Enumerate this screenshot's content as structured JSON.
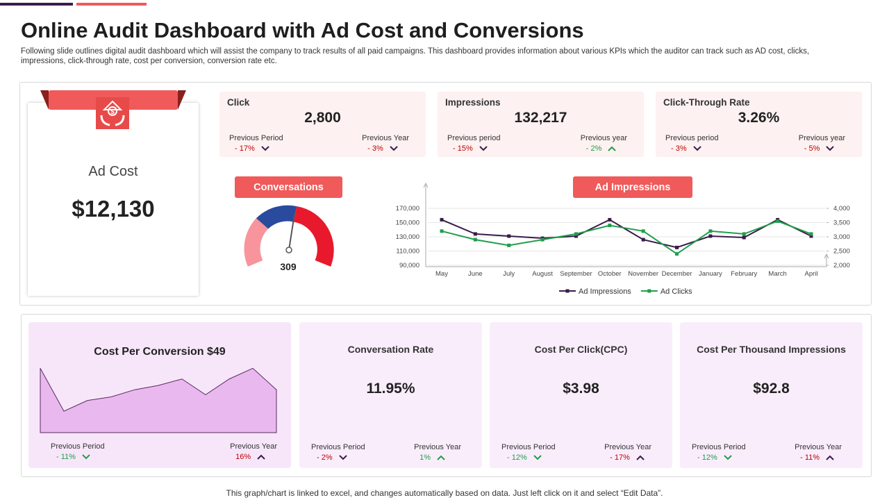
{
  "header": {
    "title": "Online Audit Dashboard with Ad Cost and Conversions",
    "subtitle": "Following slide outlines digital audit dashboard which will assist the company to track results of all paid campaigns. This dashboard provides information about various KPIs which the auditor can track such as AD cost, clicks, impressions, click-through rate, cost per conversion, conversion rate etc."
  },
  "ad_cost": {
    "label": "Ad Cost",
    "value": "$12,130"
  },
  "kpis": [
    {
      "name": "Click",
      "value": "2,800",
      "changes": [
        {
          "label": "Previous Period",
          "value": "- 17%",
          "trend": "down",
          "color": "#c00000",
          "arrow_color": "#3b1a4a"
        },
        {
          "label": "Previous Year",
          "value": "- 3%",
          "trend": "down",
          "color": "#c00000",
          "arrow_color": "#3b1a4a"
        }
      ]
    },
    {
      "name": "Impressions",
      "value": "132,217",
      "changes": [
        {
          "label": "Previous period",
          "value": "- 15%",
          "trend": "down",
          "color": "#c00000",
          "arrow_color": "#3b1a4a"
        },
        {
          "label": "Previous year",
          "value": "- 2%",
          "trend": "up",
          "color": "#1f9e4a",
          "arrow_color": "#1f9e4a"
        }
      ]
    },
    {
      "name": "Click-Through  Rate",
      "value": "3.26%",
      "changes": [
        {
          "label": "Previous period",
          "value": "- 3%",
          "trend": "down",
          "color": "#c00000",
          "arrow_color": "#3b1a4a"
        },
        {
          "label": "Previous year",
          "value": "- 5%",
          "trend": "down",
          "color": "#c00000",
          "arrow_color": "#3b1a4a"
        }
      ]
    }
  ],
  "gauge": {
    "title": "Conversations",
    "value": "309"
  },
  "chart_data": {
    "type": "line",
    "title": "Ad Impressions",
    "categories": [
      "May",
      "June",
      "July",
      "August",
      "September",
      "October",
      "November",
      "December",
      "January",
      "February",
      "March",
      "April"
    ],
    "series": [
      {
        "name": "Ad Impressions",
        "color": "#3b1a4a",
        "values": [
          154000,
          134000,
          131000,
          128000,
          131000,
          154000,
          126000,
          115000,
          131000,
          129000,
          154000,
          131000
        ]
      },
      {
        "name": "Ad Clicks",
        "color": "#1f9e4a",
        "axis": "y2",
        "values": [
          3200,
          2900,
          2700,
          2900,
          3100,
          3400,
          3200,
          2400,
          3200,
          3100,
          3550,
          3100
        ]
      }
    ],
    "ylim": [
      90000,
      170000
    ],
    "yticks": [
      {
        "value": 90000,
        "label": "90,000"
      },
      {
        "value": 110000,
        "label": "110,000"
      },
      {
        "value": 130000,
        "label": "130,000"
      },
      {
        "value": 150000,
        "label": "150,000"
      },
      {
        "value": 170000,
        "label": "170,000"
      }
    ],
    "y2lim": [
      2000,
      4000
    ],
    "y2ticks": [
      {
        "value": 2000,
        "label": "2,000"
      },
      {
        "value": 2500,
        "label": "2,500"
      },
      {
        "value": 3000,
        "label": "3,000"
      },
      {
        "value": 3500,
        "label": "3,500"
      },
      {
        "value": 4000,
        "label": "4,000"
      }
    ],
    "grid": true,
    "legend": "bottom"
  },
  "cost_per_conversion": {
    "title": "Cost Per Conversion $49",
    "chart": {
      "type": "area",
      "values": [
        90,
        30,
        45,
        50,
        60,
        66,
        75,
        53,
        75,
        90,
        60
      ],
      "ylim": [
        0,
        100
      ],
      "color": "#e9b8ee",
      "line_color": "#5a2a5e"
    },
    "changes": [
      {
        "label": "Previous Period",
        "value": "- 11%",
        "trend": "down",
        "color": "#1f9e4a",
        "arrow_color": "#1f9e4a"
      },
      {
        "label": "Previous Year",
        "value": "16%",
        "trend": "up",
        "color": "#c00000",
        "arrow_color": "#3b1a4a"
      }
    ]
  },
  "metrics": [
    {
      "name": "Conversation Rate",
      "value": "11.95%",
      "changes": [
        {
          "label": "Previous Period",
          "value": "- 2%",
          "trend": "down",
          "color": "#c00000",
          "arrow_color": "#3b1a4a"
        },
        {
          "label": "Previous Year",
          "value": "1%",
          "trend": "up",
          "color": "#1f9e4a",
          "arrow_color": "#1f9e4a"
        }
      ]
    },
    {
      "name": "Cost  Per Click(CPC)",
      "value": "$3.98",
      "changes": [
        {
          "label": "Previous Period",
          "value": "- 12%",
          "trend": "down",
          "color": "#1f9e4a",
          "arrow_color": "#1f9e4a"
        },
        {
          "label": "Previous Year",
          "value": "- 17%",
          "trend": "up",
          "color": "#c00000",
          "arrow_color": "#3b1a4a"
        }
      ]
    },
    {
      "name": "Cost  Per Thousand  Impressions",
      "value": "$92.8",
      "changes": [
        {
          "label": "Previous Period",
          "value": "- 12%",
          "trend": "down",
          "color": "#1f9e4a",
          "arrow_color": "#1f9e4a"
        },
        {
          "label": "Previous Year",
          "value": "- 11%",
          "trend": "up",
          "color": "#c00000",
          "arrow_color": "#3b1a4a"
        }
      ]
    }
  ],
  "footer": "This graph/chart is linked to excel,  and changes automatically based on data. Just left click on it and select “Edit Data”."
}
